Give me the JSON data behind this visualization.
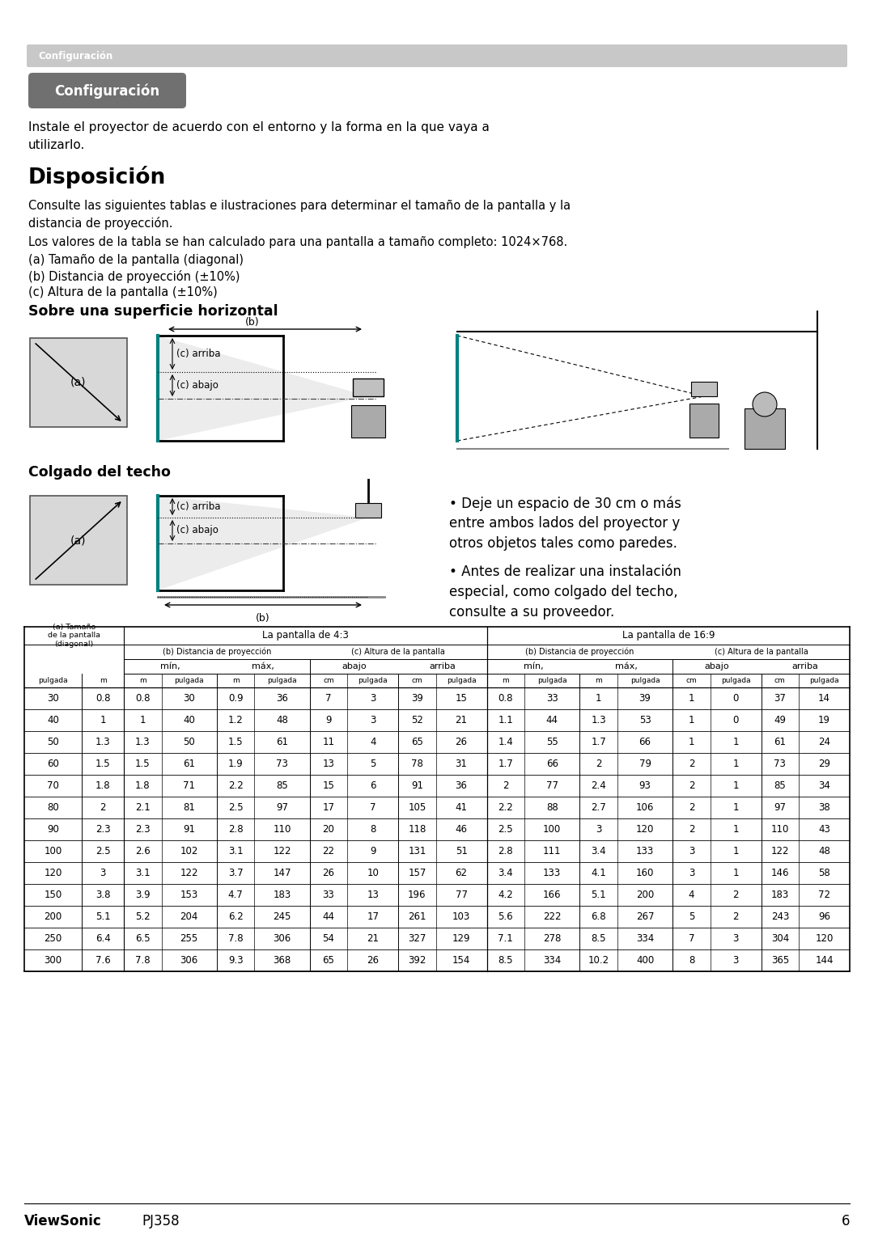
{
  "page_bg": "#ffffff",
  "header_bar_color": "#c0c0c0",
  "header_text": "Configuración",
  "badge_text": "Configuración",
  "intro_text1": "Instale el proyector de acuerdo con el entorno y la forma en la que vaya a",
  "intro_text2": "utilizarlo.",
  "section_title": "Disposición",
  "body_text1": "Consulte las siguientes tablas e ilustraciones para determinar el tamaño de la pantalla y la",
  "body_text2": "distancia de proyección.",
  "body_text3": "Los valores de la tabla se han calculado para una pantalla a tamaño completo: 1024×768.",
  "list_items": [
    "(a) Tamaño de la pantalla (diagonal)",
    "(b) Distancia de proyección (±10%)",
    "(c) Altura de la pantalla (±10%)"
  ],
  "subsection1": "Sobre una superficie horizontal",
  "subsection2": "Colgado del techo",
  "bullet_text1": "• Deje un espacio de 30 cm o más",
  "bullet_text1b": "entre ambos lados del proyector y",
  "bullet_text1c": "otros objetos tales como paredes.",
  "bullet_text2": "• Antes de realizar una instalación",
  "bullet_text2b": "especial, como colgado del techo,",
  "bullet_text2c": "consulte a su proveedor.",
  "footer_brand": "ViewSonic",
  "footer_model": "PJ358",
  "footer_page": "6",
  "table_data": [
    [
      30,
      0.8,
      0.8,
      30,
      0.9,
      36,
      7,
      3,
      39,
      15,
      0.8,
      33,
      1.0,
      39,
      1,
      0,
      37,
      14
    ],
    [
      40,
      1.0,
      1.0,
      40,
      1.2,
      48,
      9,
      3,
      52,
      21,
      1.1,
      44,
      1.3,
      53,
      1,
      0,
      49,
      19
    ],
    [
      50,
      1.3,
      1.3,
      50,
      1.5,
      61,
      11,
      4,
      65,
      26,
      1.4,
      55,
      1.7,
      66,
      1,
      1,
      61,
      24
    ],
    [
      60,
      1.5,
      1.5,
      61,
      1.9,
      73,
      13,
      5,
      78,
      31,
      1.7,
      66,
      2.0,
      79,
      2,
      1,
      73,
      29
    ],
    [
      70,
      1.8,
      1.8,
      71,
      2.2,
      85,
      15,
      6,
      91,
      36,
      2.0,
      77,
      2.4,
      93,
      2,
      1,
      85,
      34
    ],
    [
      80,
      2.0,
      2.1,
      81,
      2.5,
      97,
      17,
      7,
      105,
      41,
      2.2,
      88,
      2.7,
      106,
      2,
      1,
      97,
      38
    ],
    [
      90,
      2.3,
      2.3,
      91,
      2.8,
      110,
      20,
      8,
      118,
      46,
      2.5,
      100,
      3.0,
      120,
      2,
      1,
      110,
      43
    ],
    [
      100,
      2.5,
      2.6,
      102,
      3.1,
      122,
      22,
      9,
      131,
      51,
      2.8,
      111,
      3.4,
      133,
      3,
      1,
      122,
      48
    ],
    [
      120,
      3.0,
      3.1,
      122,
      3.7,
      147,
      26,
      10,
      157,
      62,
      3.4,
      133,
      4.1,
      160,
      3,
      1,
      146,
      58
    ],
    [
      150,
      3.8,
      3.9,
      153,
      4.7,
      183,
      33,
      13,
      196,
      77,
      4.2,
      166,
      5.1,
      200,
      4,
      2,
      183,
      72
    ],
    [
      200,
      5.1,
      5.2,
      204,
      6.2,
      245,
      44,
      17,
      261,
      103,
      5.6,
      222,
      6.8,
      267,
      5,
      2,
      243,
      96
    ],
    [
      250,
      6.4,
      6.5,
      255,
      7.8,
      306,
      54,
      21,
      327,
      129,
      7.1,
      278,
      8.5,
      334,
      7,
      3,
      304,
      120
    ],
    [
      300,
      7.6,
      7.8,
      306,
      9.3,
      368,
      65,
      26,
      392,
      154,
      8.5,
      334,
      10.2,
      400,
      8,
      3,
      365,
      144
    ]
  ]
}
